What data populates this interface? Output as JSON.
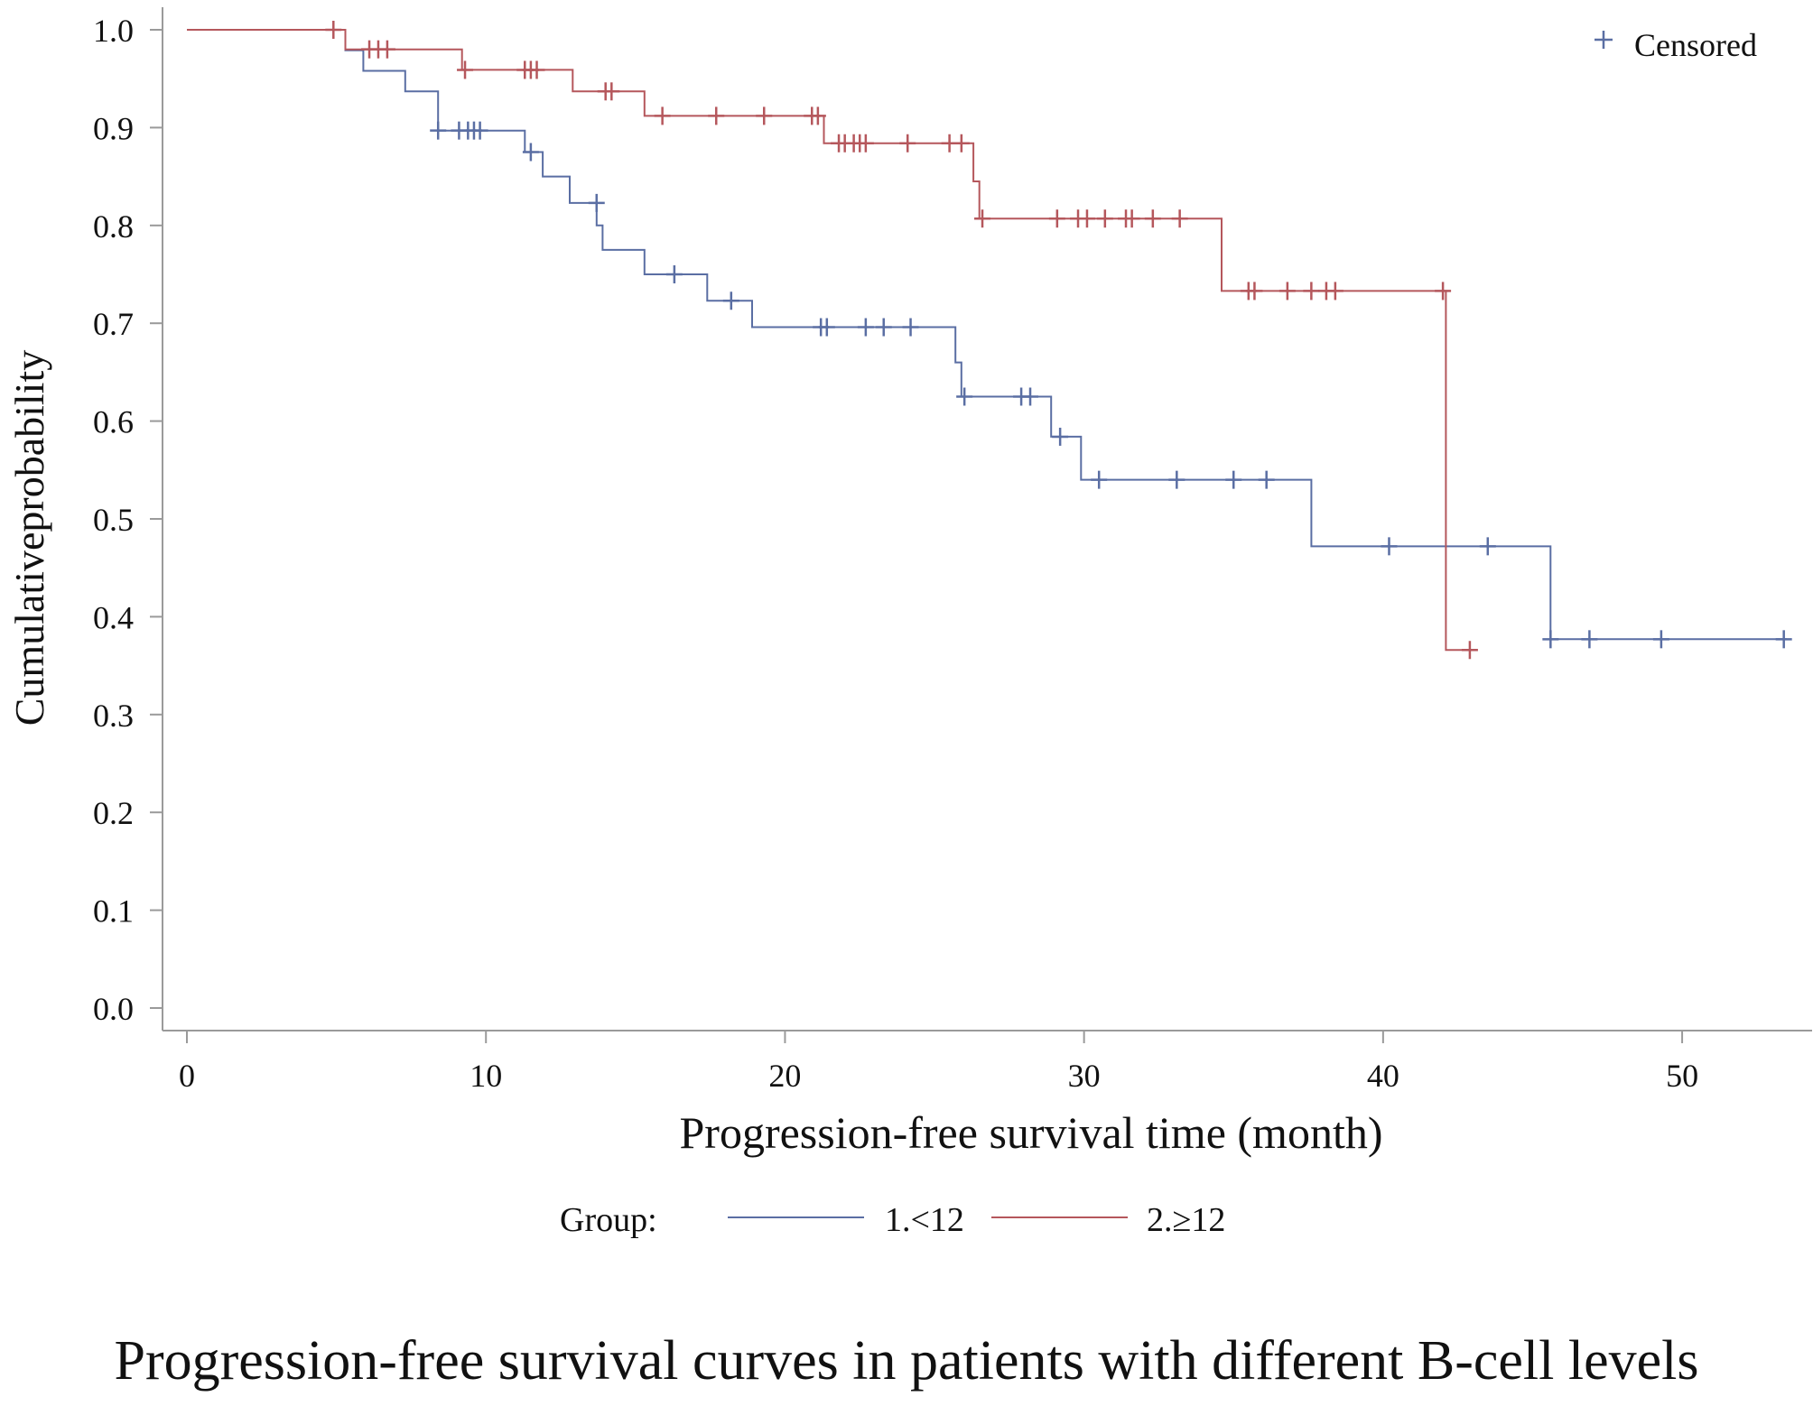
{
  "chart_data": {
    "type": "line",
    "subtype": "kaplan-meier step",
    "xlabel": "Progression-free survival time (month)",
    "ylabel": "Cumulativeprobability",
    "xlim": [
      0,
      53.5
    ],
    "ylim": [
      0,
      1.0
    ],
    "x_ticks": [
      "0",
      "10",
      "20",
      "30",
      "40",
      "50"
    ],
    "y_ticks": [
      "0.0",
      "0.1",
      "0.2",
      "0.3",
      "0.4",
      "0.5",
      "0.6",
      "0.7",
      "0.8",
      "0.9",
      "1.0"
    ],
    "censor_legend": {
      "symbol": "+",
      "label": "Censored"
    },
    "group_legend_title": "Group:",
    "series": [
      {
        "name": "1.<12",
        "color": "#5a6ea3",
        "steps": [
          [
            0,
            1.0
          ],
          [
            5.3,
            0.979
          ],
          [
            5.9,
            0.958
          ],
          [
            7.3,
            0.937
          ],
          [
            8.4,
            0.897
          ],
          [
            11.3,
            0.875
          ],
          [
            11.9,
            0.85
          ],
          [
            12.8,
            0.823
          ],
          [
            13.7,
            0.8
          ],
          [
            13.9,
            0.775
          ],
          [
            15.3,
            0.75
          ],
          [
            17.4,
            0.723
          ],
          [
            18.9,
            0.696
          ],
          [
            25.7,
            0.66
          ],
          [
            25.9,
            0.625
          ],
          [
            28.9,
            0.584
          ],
          [
            29.9,
            0.54
          ],
          [
            37.6,
            0.472
          ],
          [
            45.6,
            0.377
          ],
          [
            53.5,
            0.377
          ]
        ],
        "censored": [
          [
            8.4,
            0.897
          ],
          [
            9.1,
            0.897
          ],
          [
            9.4,
            0.897
          ],
          [
            9.6,
            0.897
          ],
          [
            9.8,
            0.897
          ],
          [
            11.5,
            0.875
          ],
          [
            13.7,
            0.823
          ],
          [
            16.3,
            0.75
          ],
          [
            18.2,
            0.723
          ],
          [
            21.2,
            0.696
          ],
          [
            21.4,
            0.696
          ],
          [
            22.7,
            0.696
          ],
          [
            23.3,
            0.696
          ],
          [
            24.2,
            0.696
          ],
          [
            26.0,
            0.625
          ],
          [
            27.9,
            0.625
          ],
          [
            28.2,
            0.625
          ],
          [
            29.2,
            0.584
          ],
          [
            30.5,
            0.54
          ],
          [
            33.1,
            0.54
          ],
          [
            35.0,
            0.54
          ],
          [
            36.1,
            0.54
          ],
          [
            40.2,
            0.472
          ],
          [
            43.5,
            0.472
          ],
          [
            45.6,
            0.377
          ],
          [
            46.9,
            0.377
          ],
          [
            49.3,
            0.377
          ],
          [
            53.4,
            0.377
          ]
        ]
      },
      {
        "name": "2.≥12",
        "color": "#b5575c",
        "steps": [
          [
            0,
            1.0
          ],
          [
            5.3,
            0.98
          ],
          [
            9.2,
            0.959
          ],
          [
            12.9,
            0.937
          ],
          [
            15.3,
            0.912
          ],
          [
            21.3,
            0.884
          ],
          [
            26.3,
            0.845
          ],
          [
            26.5,
            0.807
          ],
          [
            34.6,
            0.733
          ],
          [
            42.1,
            0.366
          ],
          [
            42.9,
            0.366
          ]
        ],
        "censored": [
          [
            4.9,
            1.0
          ],
          [
            6.1,
            0.98
          ],
          [
            6.4,
            0.98
          ],
          [
            6.7,
            0.98
          ],
          [
            9.3,
            0.959
          ],
          [
            11.3,
            0.959
          ],
          [
            11.5,
            0.959
          ],
          [
            11.7,
            0.959
          ],
          [
            14.0,
            0.937
          ],
          [
            14.2,
            0.937
          ],
          [
            15.9,
            0.912
          ],
          [
            17.7,
            0.912
          ],
          [
            19.3,
            0.912
          ],
          [
            20.9,
            0.912
          ],
          [
            21.1,
            0.912
          ],
          [
            21.8,
            0.884
          ],
          [
            22.0,
            0.884
          ],
          [
            22.3,
            0.884
          ],
          [
            22.5,
            0.884
          ],
          [
            22.7,
            0.884
          ],
          [
            24.1,
            0.884
          ],
          [
            25.5,
            0.884
          ],
          [
            25.9,
            0.884
          ],
          [
            26.6,
            0.807
          ],
          [
            29.1,
            0.807
          ],
          [
            29.8,
            0.807
          ],
          [
            30.1,
            0.807
          ],
          [
            30.7,
            0.807
          ],
          [
            31.4,
            0.807
          ],
          [
            31.6,
            0.807
          ],
          [
            32.3,
            0.807
          ],
          [
            33.2,
            0.807
          ],
          [
            35.5,
            0.733
          ],
          [
            35.7,
            0.733
          ],
          [
            36.8,
            0.733
          ],
          [
            37.6,
            0.733
          ],
          [
            38.1,
            0.733
          ],
          [
            38.4,
            0.733
          ],
          [
            42.0,
            0.733
          ],
          [
            42.9,
            0.366
          ]
        ]
      }
    ]
  },
  "caption": "Progression-free survival curves in patients with different B-cell levels"
}
